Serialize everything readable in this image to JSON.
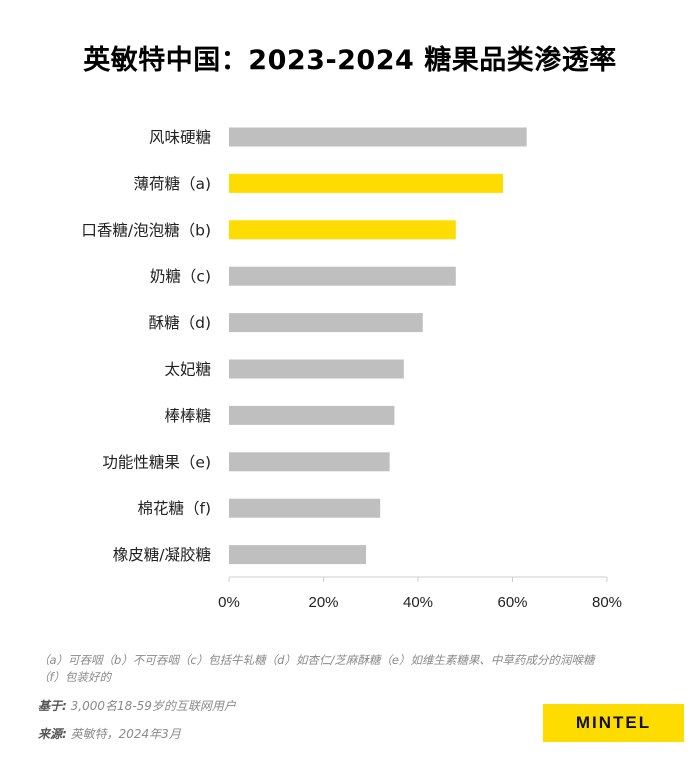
{
  "title": "英敏特中国：2023-2024 糖果品类渗透率",
  "chart_data": {
    "type": "bar",
    "orientation": "horizontal",
    "categories": [
      "风味硬糖",
      "薄荷糖（a)",
      "口香糖/泡泡糖（b)",
      "奶糖（c)",
      "酥糖（d)",
      "太妃糖",
      "棒棒糖",
      "功能性糖果（e)",
      "棉花糖（f)",
      "橡皮糖/凝胶糖"
    ],
    "values": [
      63,
      58,
      48,
      48,
      41,
      37,
      35,
      34,
      32,
      29
    ],
    "highlighted": [
      false,
      true,
      true,
      false,
      false,
      false,
      false,
      false,
      false,
      false
    ],
    "xlim": [
      0,
      80
    ],
    "xticks": [
      "0%",
      "20%",
      "40%",
      "60%",
      "80%"
    ],
    "grid": false,
    "colors": {
      "default": "#bfbfbf",
      "highlight": "#ffdc00"
    }
  },
  "footnotes": {
    "definitions": "（a）可吞咽（b）不可吞咽（c）包括牛轧糖（d）如杏仁/芝麻酥糖（e）如维生素糖果、中草药成分的润喉糖",
    "definitions_cont": "（f）包装好的"
  },
  "base": {
    "label": "基于:",
    "text": "3,000名18-59岁的互联网用户"
  },
  "source": {
    "label": "来源:",
    "text": "英敏特，2024年3月"
  },
  "logo": "MINTEL"
}
